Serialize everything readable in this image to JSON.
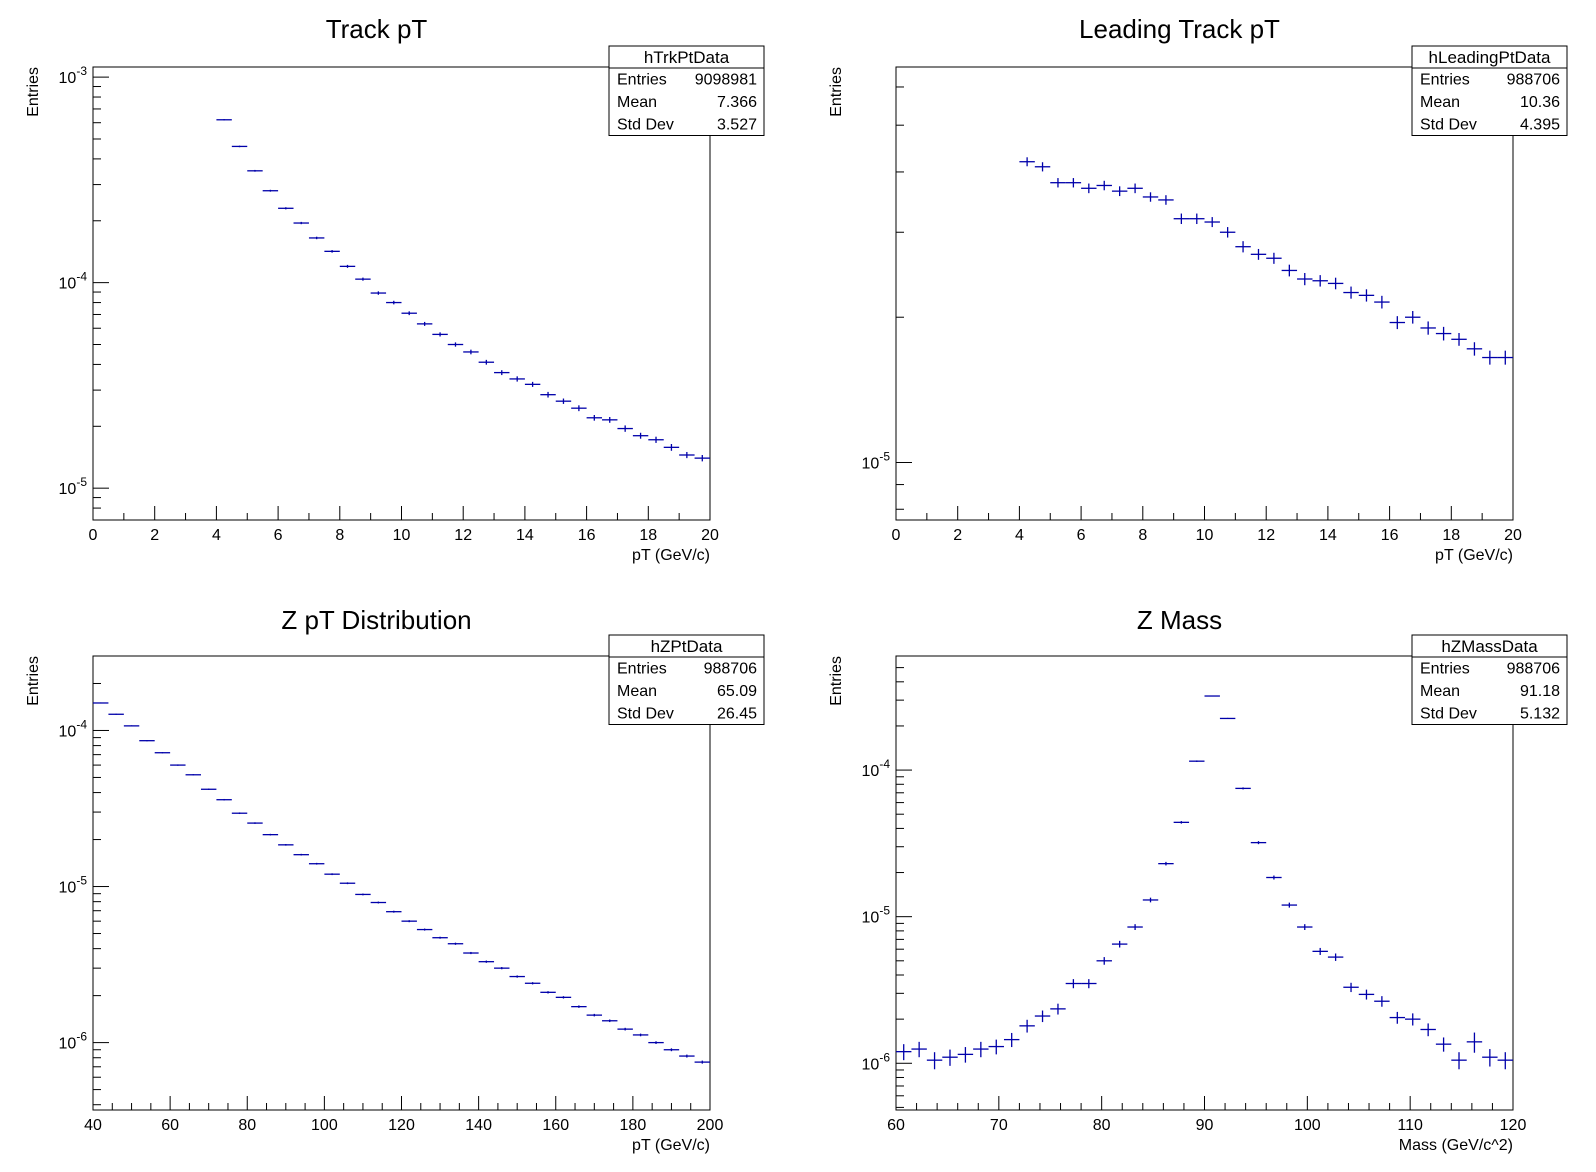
{
  "colors": {
    "marker": "#0000aa",
    "axis": "#000000",
    "background": "#ffffff"
  },
  "chart_data": [
    {
      "type": "scatter",
      "title": "Track pT",
      "xlabel": "pT (GeV/c)",
      "ylabel": "Entries",
      "xlim": [
        0,
        20
      ],
      "ylim": [
        7e-06,
        0.00112
      ],
      "yscale": "log",
      "grid": false,
      "xticks": [
        "0",
        "2",
        "4",
        "6",
        "8",
        "10",
        "12",
        "14",
        "16",
        "18",
        "20"
      ],
      "yticks": [
        {
          "mant": "10",
          "exp": "-5",
          "v": 1e-05
        },
        {
          "mant": "10",
          "exp": "-4",
          "v": 0.0001
        },
        {
          "mant": "10",
          "exp": "-3",
          "v": 0.001
        }
      ],
      "stats": {
        "name": "hTrkPtData",
        "rows": [
          [
            "Entries",
            "9098981"
          ],
          [
            "Mean",
            "7.366"
          ],
          [
            "Std Dev",
            "3.527"
          ]
        ]
      },
      "bin_width": 0.5,
      "x": [
        4.25,
        4.75,
        5.25,
        5.75,
        6.25,
        6.75,
        7.25,
        7.75,
        8.25,
        8.75,
        9.25,
        9.75,
        10.25,
        10.75,
        11.25,
        11.75,
        12.25,
        12.75,
        13.25,
        13.75,
        14.25,
        14.75,
        15.25,
        15.75,
        16.25,
        16.75,
        17.25,
        17.75,
        18.25,
        18.75,
        19.25,
        19.75
      ],
      "y": [
        0.00062,
        0.00046,
        0.00035,
        0.00028,
        0.00023,
        0.000195,
        0.000165,
        0.000142,
        0.00012,
        0.000104,
        8.9e-05,
        8e-05,
        7.1e-05,
        6.3e-05,
        5.6e-05,
        5e-05,
        4.6e-05,
        4.1e-05,
        3.65e-05,
        3.4e-05,
        3.2e-05,
        2.85e-05,
        2.65e-05,
        2.45e-05,
        2.2e-05,
        2.15e-05,
        1.95e-05,
        1.8e-05,
        1.72e-05,
        1.58e-05,
        1.45e-05,
        1.4e-05
      ],
      "yerr": [
        5e-06,
        4e-06,
        3.5e-06,
        3e-06,
        2.8e-06,
        2.5e-06,
        2.3e-06,
        2.1e-06,
        2e-06,
        1.8e-06,
        1.7e-06,
        1.6e-06,
        1.5e-06,
        1.4e-06,
        1.3e-06,
        1.2e-06,
        1.2e-06,
        1.1e-06,
        1e-06,
        1e-06,
        9e-07,
        9e-07,
        8e-07,
        8e-07,
        7e-07,
        7e-07,
        7e-07,
        6e-07,
        6e-07,
        6e-07,
        5e-07,
        5e-07
      ]
    },
    {
      "type": "scatter",
      "title": "Leading Track pT",
      "xlabel": "pT (GeV/c)",
      "ylabel": "Entries",
      "xlim": [
        0,
        20
      ],
      "ylim": [
        7.6e-06,
        6.6e-05
      ],
      "yscale": "log",
      "grid": false,
      "xticks": [
        "0",
        "2",
        "4",
        "6",
        "8",
        "10",
        "12",
        "14",
        "16",
        "18",
        "20"
      ],
      "yticks": [
        {
          "mant": "10",
          "exp": "-5",
          "v": 1e-05
        }
      ],
      "stats": {
        "name": "hLeadingPtData",
        "rows": [
          [
            "Entries",
            "988706"
          ],
          [
            "Mean",
            "10.36"
          ],
          [
            "Std Dev",
            "4.395"
          ]
        ]
      },
      "bin_width": 0.5,
      "x": [
        4.25,
        4.75,
        5.25,
        5.75,
        6.25,
        6.75,
        7.25,
        7.75,
        8.25,
        8.75,
        9.25,
        9.75,
        10.25,
        10.75,
        11.25,
        11.75,
        12.25,
        12.75,
        13.25,
        13.75,
        14.25,
        14.75,
        15.25,
        15.75,
        16.25,
        16.75,
        17.25,
        17.75,
        18.25,
        18.75,
        19.25,
        19.75
      ],
      "y": [
        4.2e-05,
        4.1e-05,
        3.8e-05,
        3.8e-05,
        3.7e-05,
        3.75e-05,
        3.65e-05,
        3.7e-05,
        3.55e-05,
        3.5e-05,
        3.2e-05,
        3.2e-05,
        3.15e-05,
        3e-05,
        2.8e-05,
        2.7e-05,
        2.65e-05,
        2.5e-05,
        2.4e-05,
        2.38e-05,
        2.35e-05,
        2.25e-05,
        2.22e-05,
        2.15e-05,
        1.95e-05,
        2e-05,
        1.9e-05,
        1.85e-05,
        1.8e-05,
        1.72e-05,
        1.65e-05,
        1.65e-05
      ],
      "yerr": [
        9e-07,
        9e-07,
        8.5e-07,
        8.5e-07,
        8.5e-07,
        8.5e-07,
        8.5e-07,
        8.5e-07,
        8e-07,
        8e-07,
        8e-07,
        8e-07,
        7.5e-07,
        7.5e-07,
        7.5e-07,
        7e-07,
        7e-07,
        7e-07,
        7e-07,
        6.5e-07,
        6.5e-07,
        6.5e-07,
        6.5e-07,
        6.5e-07,
        6e-07,
        6e-07,
        6e-07,
        6e-07,
        5.5e-07,
        5.5e-07,
        5.5e-07,
        5.5e-07
      ]
    },
    {
      "type": "scatter",
      "title": "Z pT Distribution",
      "xlabel": "pT (GeV/c)",
      "ylabel": "Entries",
      "xlim": [
        40,
        200
      ],
      "ylim": [
        3.7e-07,
        0.0003
      ],
      "yscale": "log",
      "grid": false,
      "xticks": [
        "40",
        "60",
        "80",
        "100",
        "120",
        "140",
        "160",
        "180",
        "200"
      ],
      "yticks": [
        {
          "mant": "10",
          "exp": "-6",
          "v": 1e-06
        },
        {
          "mant": "10",
          "exp": "-5",
          "v": 1e-05
        },
        {
          "mant": "10",
          "exp": "-4",
          "v": 0.0001
        }
      ],
      "stats": {
        "name": "hZPtData",
        "rows": [
          [
            "Entries",
            "988706"
          ],
          [
            "Mean",
            "65.09"
          ],
          [
            "Std Dev",
            "26.45"
          ]
        ]
      },
      "bin_width": 4,
      "x": [
        42,
        46,
        50,
        54,
        58,
        62,
        66,
        70,
        74,
        78,
        82,
        86,
        90,
        94,
        98,
        102,
        106,
        110,
        114,
        118,
        122,
        126,
        130,
        134,
        138,
        142,
        146,
        150,
        154,
        158,
        162,
        166,
        170,
        174,
        178,
        182,
        186,
        190,
        194,
        198
      ],
      "y": [
        0.00015,
        0.000127,
        0.000107,
        8.6e-05,
        7.2e-05,
        6e-05,
        5.2e-05,
        4.2e-05,
        3.6e-05,
        2.95e-05,
        2.55e-05,
        2.15e-05,
        1.85e-05,
        1.6e-05,
        1.4e-05,
        1.2e-05,
        1.05e-05,
        8.9e-06,
        7.9e-06,
        6.9e-06,
        6e-06,
        5.3e-06,
        4.7e-06,
        4.3e-06,
        3.75e-06,
        3.3e-06,
        3e-06,
        2.65e-06,
        2.4e-06,
        2.1e-06,
        1.95e-06,
        1.7e-06,
        1.5e-06,
        1.38e-06,
        1.22e-06,
        1.12e-06,
        1e-06,
        9e-07,
        8.2e-07,
        7.5e-07
      ],
      "yerr": [
        1.2e-06,
        1e-06,
        9e-07,
        8e-07,
        7e-07,
        6e-07,
        5e-07,
        4.5e-07,
        4e-07,
        3.5e-07,
        3e-07,
        2.6e-07,
        2.3e-07,
        2e-07,
        1.8e-07,
        1.6e-07,
        1.4e-07,
        1.2e-07,
        1.1e-07,
        1e-07,
        9e-08,
        8e-08,
        7e-08,
        7e-08,
        6e-08,
        5.5e-08,
        5e-08,
        4.5e-08,
        4e-08,
        3.6e-08,
        3.4e-08,
        3.1e-08,
        2.8e-08,
        2.6e-08,
        2.4e-08,
        2.2e-08,
        2e-08,
        1.9e-08,
        1.8e-08,
        1.7e-08
      ]
    },
    {
      "type": "scatter",
      "title": "Z Mass",
      "xlabel": "Mass (GeV/c^2)",
      "ylabel": "Entries",
      "xlim": [
        60,
        120
      ],
      "ylim": [
        4.8e-07,
        0.0006
      ],
      "yscale": "log",
      "grid": false,
      "xticks": [
        "60",
        "70",
        "80",
        "90",
        "100",
        "110",
        "120"
      ],
      "yticks": [
        {
          "mant": "10",
          "exp": "-6",
          "v": 1e-06
        },
        {
          "mant": "10",
          "exp": "-5",
          "v": 1e-05
        },
        {
          "mant": "10",
          "exp": "-4",
          "v": 0.0001
        }
      ],
      "stats": {
        "name": "hZMassData",
        "rows": [
          [
            "Entries",
            "988706"
          ],
          [
            "Mean",
            "91.18"
          ],
          [
            "Std Dev",
            "5.132"
          ]
        ]
      },
      "bin_width": 1.5,
      "x": [
        60.75,
        62.25,
        63.75,
        65.25,
        66.75,
        68.25,
        69.75,
        71.25,
        72.75,
        74.25,
        75.75,
        77.25,
        78.75,
        80.25,
        81.75,
        83.25,
        84.75,
        86.25,
        87.75,
        89.25,
        90.75,
        92.25,
        93.75,
        95.25,
        96.75,
        98.25,
        99.75,
        101.25,
        102.75,
        104.25,
        105.75,
        107.25,
        108.75,
        110.25,
        111.75,
        113.25,
        114.75,
        116.25,
        117.75,
        119.25
      ],
      "y": [
        1.2e-06,
        1.25e-06,
        1.05e-06,
        1.1e-06,
        1.15e-06,
        1.25e-06,
        1.3e-06,
        1.45e-06,
        1.8e-06,
        2.1e-06,
        2.35e-06,
        3.5e-06,
        3.5e-06,
        5e-06,
        6.5e-06,
        8.5e-06,
        1.3e-05,
        2.3e-05,
        4.4e-05,
        0.000115,
        0.00032,
        0.000225,
        7.5e-05,
        3.2e-05,
        1.85e-05,
        1.2e-05,
        8.5e-06,
        5.8e-06,
        5.3e-06,
        3.3e-06,
        2.95e-06,
        2.65e-06,
        2.05e-06,
        2e-06,
        1.7e-06,
        1.35e-06,
        1.05e-06,
        1.4e-06,
        1.1e-06,
        1.05e-06
      ],
      "yerr": [
        1.5e-07,
        1.5e-07,
        1.4e-07,
        1.4e-07,
        1.4e-07,
        1.5e-07,
        1.5e-07,
        1.6e-07,
        1.8e-07,
        1.9e-07,
        2e-07,
        2.5e-07,
        2.5e-07,
        3e-07,
        3.4e-07,
        3.9e-07,
        4.8e-07,
        6.4e-07,
        8.8e-07,
        1.4e-06,
        2.4e-06,
        2e-06,
        1.2e-06,
        7.6e-07,
        5.8e-07,
        4.7e-07,
        3.9e-07,
        3.2e-07,
        3.1e-07,
        2.4e-07,
        2.3e-07,
        2.2e-07,
        1.9e-07,
        1.9e-07,
        1.7e-07,
        1.5e-07,
        1.4e-07,
        2.2e-07,
        1.5e-07,
        1.4e-07
      ]
    }
  ]
}
